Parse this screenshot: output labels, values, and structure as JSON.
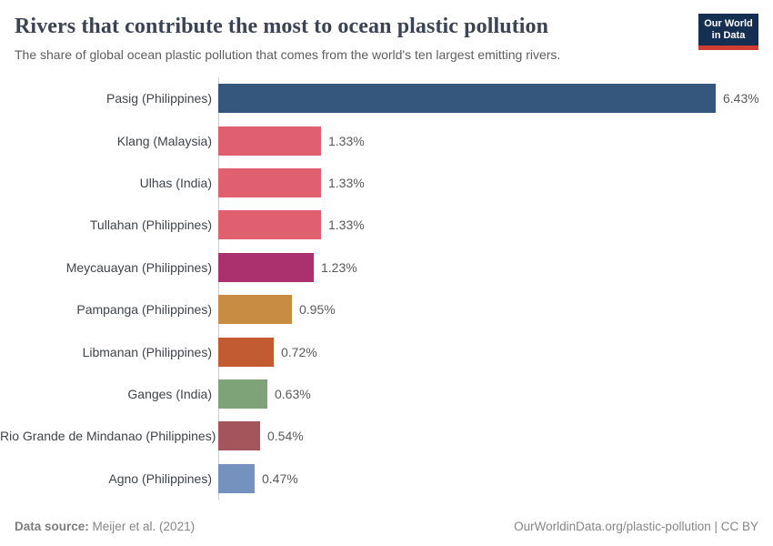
{
  "header": {
    "title": "Rivers that contribute the most to ocean plastic pollution",
    "subtitle": "The share of global ocean plastic pollution that comes from the world's ten largest emitting rivers.",
    "logo": {
      "line1": "Our World",
      "line2": "in Data",
      "bg_color": "#152f52",
      "accent_color": "#d13d33",
      "text_color": "#ffffff"
    }
  },
  "chart_data": {
    "type": "bar",
    "orientation": "horizontal",
    "title": "Rivers that contribute the most to ocean plastic pollution",
    "subtitle": "The share of global ocean plastic pollution that comes from the world's ten largest emitting rivers.",
    "categories": [
      "Pasig (Philippines)",
      "Klang (Malaysia)",
      "Ulhas (India)",
      "Tullahan (Philippines)",
      "Meycauayan (Philippines)",
      "Pampanga (Philippines)",
      "Libmanan (Philippines)",
      "Ganges (India)",
      "Rio Grande de Mindanao (Philippines)",
      "Agno (Philippines)"
    ],
    "values": [
      6.43,
      1.33,
      1.33,
      1.33,
      1.23,
      0.95,
      0.72,
      0.63,
      0.54,
      0.47
    ],
    "value_labels": [
      "6.43%",
      "1.33%",
      "1.33%",
      "1.33%",
      "1.23%",
      "0.95%",
      "0.72%",
      "0.63%",
      "0.54%",
      "0.47%"
    ],
    "unit": "%",
    "xlim": [
      0,
      6.95
    ],
    "grid": false,
    "legend": "none",
    "bar_colors": [
      "#36577d",
      "#e0606f",
      "#e0606f",
      "#e0606f",
      "#aa306e",
      "#c98c43",
      "#c35b32",
      "#7fa379",
      "#a4545c",
      "#7591bd"
    ]
  },
  "footer": {
    "datasource_label": "Data source:",
    "datasource_value": " Meijer et al. (2021)",
    "attribution": "OurWorldinData.org/plastic-pollution | CC BY"
  }
}
